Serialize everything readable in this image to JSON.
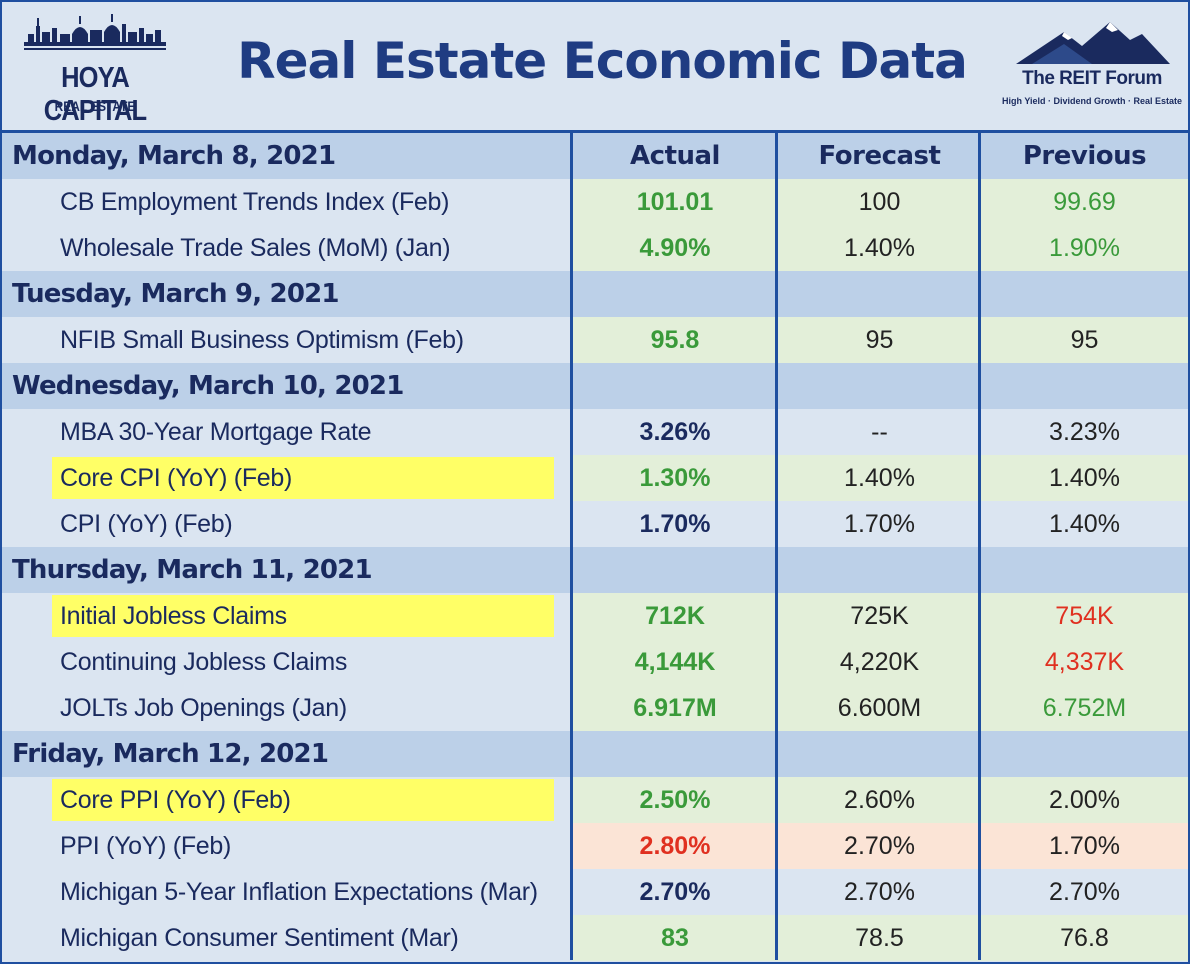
{
  "header": {
    "title": "Real Estate Economic Data",
    "left_logo": {
      "name": "HOYA CAPITAL",
      "sub": "REAL ESTATE"
    },
    "right_logo": {
      "name": "The REIT Forum",
      "tagline": "High Yield · Dividend Growth · Real Estate"
    }
  },
  "columns": {
    "actual": "Actual",
    "forecast": "Forecast",
    "previous": "Previous"
  },
  "colors": {
    "navy": "#1a2a5e",
    "border_blue": "#1f4fa0",
    "green_text": "#3a9a3a",
    "red_text": "#e03020",
    "highlight_yellow": "#ffff66",
    "green_cell": "#e3efd9",
    "blue_cell": "#dbe5f1",
    "red_cell": "#fbe4d6"
  },
  "days": [
    {
      "label": "Monday, March 8, 2021",
      "items": [
        {
          "name": "CB Employment Trends Index (Feb)",
          "actual": "101.01",
          "forecast": "100",
          "previous": "99.69"
        },
        {
          "name": "Wholesale Trade Sales (MoM) (Jan)",
          "actual": "4.90%",
          "forecast": "1.40%",
          "previous": "1.90%"
        }
      ]
    },
    {
      "label": "Tuesday, March 9, 2021",
      "items": [
        {
          "name": "NFIB Small Business Optimism (Feb)",
          "actual": "95.8",
          "forecast": "95",
          "previous": "95"
        }
      ]
    },
    {
      "label": "Wednesday, March 10, 2021",
      "items": [
        {
          "name": "MBA 30-Year Mortgage Rate",
          "actual": "3.26%",
          "forecast": "--",
          "previous": "3.23%"
        },
        {
          "name": "Core CPI (YoY) (Feb)",
          "actual": "1.30%",
          "forecast": "1.40%",
          "previous": "1.40%"
        },
        {
          "name": "CPI (YoY) (Feb)",
          "actual": "1.70%",
          "forecast": "1.70%",
          "previous": "1.40%"
        }
      ]
    },
    {
      "label": "Thursday, March 11, 2021",
      "items": [
        {
          "name": "Initial Jobless Claims",
          "actual": "712K",
          "forecast": "725K",
          "previous": "754K"
        },
        {
          "name": "Continuing Jobless Claims",
          "actual": "4,144K",
          "forecast": "4,220K",
          "previous": "4,337K"
        },
        {
          "name": "JOLTs Job Openings (Jan)",
          "actual": "6.917M",
          "forecast": "6.600M",
          "previous": "6.752M"
        }
      ]
    },
    {
      "label": "Friday, March 12, 2021",
      "items": [
        {
          "name": "Core PPI (YoY) (Feb)",
          "actual": "2.50%",
          "forecast": "2.60%",
          "previous": "2.00%"
        },
        {
          "name": "PPI (YoY) (Feb)",
          "actual": "2.80%",
          "forecast": "2.70%",
          "previous": "1.70%"
        },
        {
          "name": "Michigan 5-Year Inflation Expectations (Mar)",
          "actual": "2.70%",
          "forecast": "2.70%",
          "previous": "2.70%"
        },
        {
          "name": "Michigan Consumer Sentiment (Mar)",
          "actual": "83",
          "forecast": "78.5",
          "previous": "76.8"
        }
      ]
    }
  ]
}
